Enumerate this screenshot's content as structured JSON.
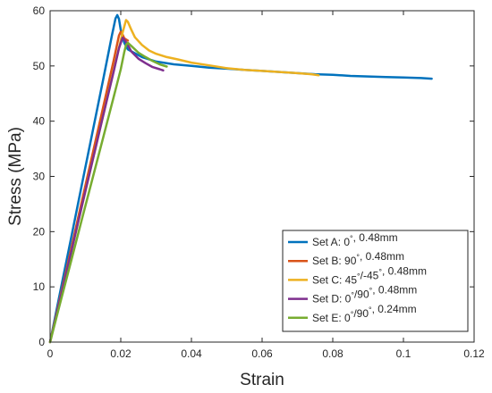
{
  "chart_data": {
    "type": "line",
    "title": "",
    "xlabel": "Strain",
    "ylabel": "Stress (MPa)",
    "xlim": [
      0,
      0.12
    ],
    "ylim": [
      0,
      60
    ],
    "xticks": [
      "0",
      "0.02",
      "0.04",
      "0.06",
      "0.08",
      "0.1",
      "0.12"
    ],
    "yticks": [
      "0",
      "10",
      "20",
      "30",
      "40",
      "50",
      "60"
    ],
    "grid": false,
    "legend_position": "bottom-right",
    "series": [
      {
        "name": "Set A: 0°, 0.48mm",
        "legend": {
          "pre": "Set A: 0",
          "deg1": "°",
          "mid": "",
          "deg2": "",
          "post": ", 0.48mm"
        },
        "color": "#0072bd",
        "x": [
          0,
          0.003,
          0.006,
          0.009,
          0.012,
          0.015,
          0.0175,
          0.0185,
          0.019,
          0.0195,
          0.02,
          0.021,
          0.022,
          0.024,
          0.026,
          0.028,
          0.03,
          0.032,
          0.035,
          0.04,
          0.045,
          0.05,
          0.055,
          0.06,
          0.065,
          0.07,
          0.075,
          0.08,
          0.085,
          0.09,
          0.095,
          0.1,
          0.105,
          0.108
        ],
        "y": [
          0,
          9.5,
          19,
          28.5,
          38,
          47.5,
          55.5,
          58.6,
          59.2,
          58.5,
          56.5,
          54.2,
          53,
          52.3,
          51.6,
          51.2,
          50.8,
          50.6,
          50.3,
          50,
          49.7,
          49.5,
          49.3,
          49.1,
          48.9,
          48.7,
          48.5,
          48.4,
          48.2,
          48.1,
          48,
          47.9,
          47.8,
          47.7
        ]
      },
      {
        "name": "Set B: 90°, 0.48mm",
        "legend": {
          "pre": "Set B: 90",
          "deg1": "°",
          "mid": "",
          "deg2": "",
          "post": ", 0.48mm"
        },
        "color": "#d95319",
        "x": [
          0,
          0.003,
          0.006,
          0.009,
          0.012,
          0.015,
          0.018,
          0.0195,
          0.02,
          0.0205,
          0.021,
          0.022
        ],
        "y": [
          0,
          8.5,
          17,
          25.5,
          34,
          42.5,
          51,
          55.5,
          56.2,
          55.7,
          55,
          54.6
        ]
      },
      {
        "name": "Set C: 45°/-45°, 0.48mm",
        "legend": {
          "pre": "Set C: 45",
          "deg1": "°",
          "mid": "/-45",
          "deg2": "°",
          "post": ", 0.48mm"
        },
        "color": "#edb120",
        "x": [
          0,
          0.003,
          0.006,
          0.009,
          0.012,
          0.015,
          0.018,
          0.0205,
          0.0215,
          0.022,
          0.023,
          0.024,
          0.026,
          0.028,
          0.03,
          0.033,
          0.036,
          0.04,
          0.045,
          0.05,
          0.055,
          0.06,
          0.065,
          0.07,
          0.074,
          0.076
        ],
        "y": [
          0,
          8.2,
          16.4,
          24.6,
          32.8,
          41,
          49.2,
          56,
          58.3,
          58,
          56.5,
          55.2,
          53.8,
          52.8,
          52.2,
          51.6,
          51.2,
          50.6,
          50.1,
          49.6,
          49.3,
          49.1,
          48.9,
          48.7,
          48.5,
          48.3
        ]
      },
      {
        "name": "Set D: 0°/90°, 0.48mm",
        "legend": {
          "pre": "Set D: 0",
          "deg1": "°",
          "mid": "/90",
          "deg2": "°",
          "post": ", 0.48mm"
        },
        "color": "#7e2f8e",
        "x": [
          0,
          0.003,
          0.006,
          0.009,
          0.012,
          0.015,
          0.018,
          0.0195,
          0.0205,
          0.021,
          0.022,
          0.023,
          0.025,
          0.027,
          0.029,
          0.031,
          0.032
        ],
        "y": [
          0,
          8.2,
          16.4,
          24.6,
          32.8,
          41,
          49,
          53.2,
          55.1,
          54.8,
          53.8,
          52.6,
          51.3,
          50.5,
          49.8,
          49.4,
          49.2
        ]
      },
      {
        "name": "Set E: 0°/90°, 0.24mm",
        "legend": {
          "pre": "Set E: 0",
          "deg1": "°",
          "mid": "/90",
          "deg2": "°",
          "post": ", 0.24mm"
        },
        "color": "#77ac30",
        "x": [
          0,
          0.003,
          0.006,
          0.009,
          0.012,
          0.015,
          0.018,
          0.02,
          0.021,
          0.0215,
          0.022,
          0.023,
          0.025,
          0.027,
          0.029,
          0.031,
          0.033
        ],
        "y": [
          0,
          7.4,
          14.8,
          22.2,
          29.6,
          37,
          44.4,
          49.4,
          52.5,
          53.8,
          54.2,
          53.6,
          52.4,
          51.6,
          50.9,
          50.3,
          49.9
        ]
      }
    ]
  }
}
